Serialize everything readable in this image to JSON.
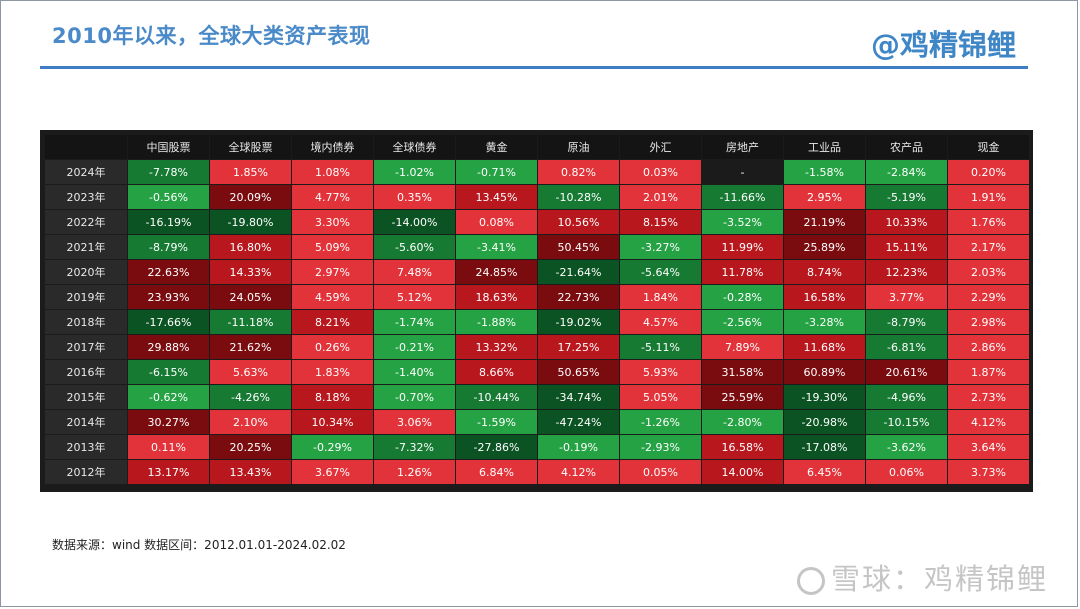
{
  "header": {
    "title": "2010年以来，全球大类资产表现",
    "brand": "@鸡精锦鲤"
  },
  "table": {
    "columns": [
      "",
      "中国股票",
      "全球股票",
      "境内债券",
      "全球债券",
      "黄金",
      "原油",
      "外汇",
      "房地产",
      "工业品",
      "农产品",
      "现金"
    ],
    "rows": [
      {
        "year": "2024年",
        "cells": [
          "-7.78%",
          "1.85%",
          "1.08%",
          "-1.02%",
          "-0.71%",
          "0.82%",
          "0.03%",
          "-",
          "-1.58%",
          "-2.84%",
          "0.20%"
        ]
      },
      {
        "year": "2023年",
        "cells": [
          "-0.56%",
          "20.09%",
          "4.77%",
          "0.35%",
          "13.45%",
          "-10.28%",
          "2.01%",
          "-11.66%",
          "2.95%",
          "-5.19%",
          "1.91%"
        ]
      },
      {
        "year": "2022年",
        "cells": [
          "-16.19%",
          "-19.80%",
          "3.30%",
          "-14.00%",
          "0.08%",
          "10.56%",
          "8.15%",
          "-3.52%",
          "21.19%",
          "10.33%",
          "1.76%"
        ]
      },
      {
        "year": "2021年",
        "cells": [
          "-8.79%",
          "16.80%",
          "5.09%",
          "-5.60%",
          "-3.41%",
          "50.45%",
          "-3.27%",
          "11.99%",
          "25.89%",
          "15.11%",
          "2.17%"
        ]
      },
      {
        "year": "2020年",
        "cells": [
          "22.63%",
          "14.33%",
          "2.97%",
          "7.48%",
          "24.85%",
          "-21.64%",
          "-5.64%",
          "11.78%",
          "8.74%",
          "12.23%",
          "2.03%"
        ]
      },
      {
        "year": "2019年",
        "cells": [
          "23.93%",
          "24.05%",
          "4.59%",
          "5.12%",
          "18.63%",
          "22.73%",
          "1.84%",
          "-0.28%",
          "16.58%",
          "3.77%",
          "2.29%"
        ]
      },
      {
        "year": "2018年",
        "cells": [
          "-17.66%",
          "-11.18%",
          "8.21%",
          "-1.74%",
          "-1.88%",
          "-19.02%",
          "4.57%",
          "-2.56%",
          "-3.28%",
          "-8.79%",
          "2.98%"
        ]
      },
      {
        "year": "2017年",
        "cells": [
          "29.88%",
          "21.62%",
          "0.26%",
          "-0.21%",
          "13.32%",
          "17.25%",
          "-5.11%",
          "7.89%",
          "11.68%",
          "-6.81%",
          "2.86%"
        ]
      },
      {
        "year": "2016年",
        "cells": [
          "-6.15%",
          "5.63%",
          "1.83%",
          "-1.40%",
          "8.66%",
          "50.65%",
          "5.93%",
          "31.58%",
          "60.89%",
          "20.61%",
          "1.87%"
        ]
      },
      {
        "year": "2015年",
        "cells": [
          "-0.62%",
          "-4.26%",
          "8.18%",
          "-0.70%",
          "-10.44%",
          "-34.74%",
          "5.05%",
          "25.59%",
          "-19.30%",
          "-4.96%",
          "2.73%"
        ]
      },
      {
        "year": "2014年",
        "cells": [
          "30.27%",
          "2.10%",
          "10.34%",
          "3.06%",
          "-1.59%",
          "-47.24%",
          "-1.26%",
          "-2.80%",
          "-20.98%",
          "-10.15%",
          "4.12%"
        ]
      },
      {
        "year": "2013年",
        "cells": [
          "0.11%",
          "20.25%",
          "-0.29%",
          "-7.32%",
          "-27.86%",
          "-0.19%",
          "-2.93%",
          "16.58%",
          "-17.08%",
          "-3.62%",
          "3.64%"
        ]
      },
      {
        "year": "2012年",
        "cells": [
          "13.17%",
          "13.43%",
          "3.67%",
          "1.26%",
          "6.84%",
          "4.12%",
          "0.05%",
          "14.00%",
          "6.45%",
          "0.06%",
          "3.73%"
        ]
      }
    ]
  },
  "colors": {
    "positive_light": "#e3333a",
    "positive_mid": "#b8171d",
    "positive_dark": "#7a0c10",
    "negative_light": "#25a244",
    "negative_mid": "#177a33",
    "negative_dark": "#0b5322",
    "blank": "#1b1b1b"
  },
  "footer": {
    "source": "数据来源：wind   数据区间：2012.01.01-2024.02.02",
    "watermark": "雪球：鸡精锦鲤"
  }
}
